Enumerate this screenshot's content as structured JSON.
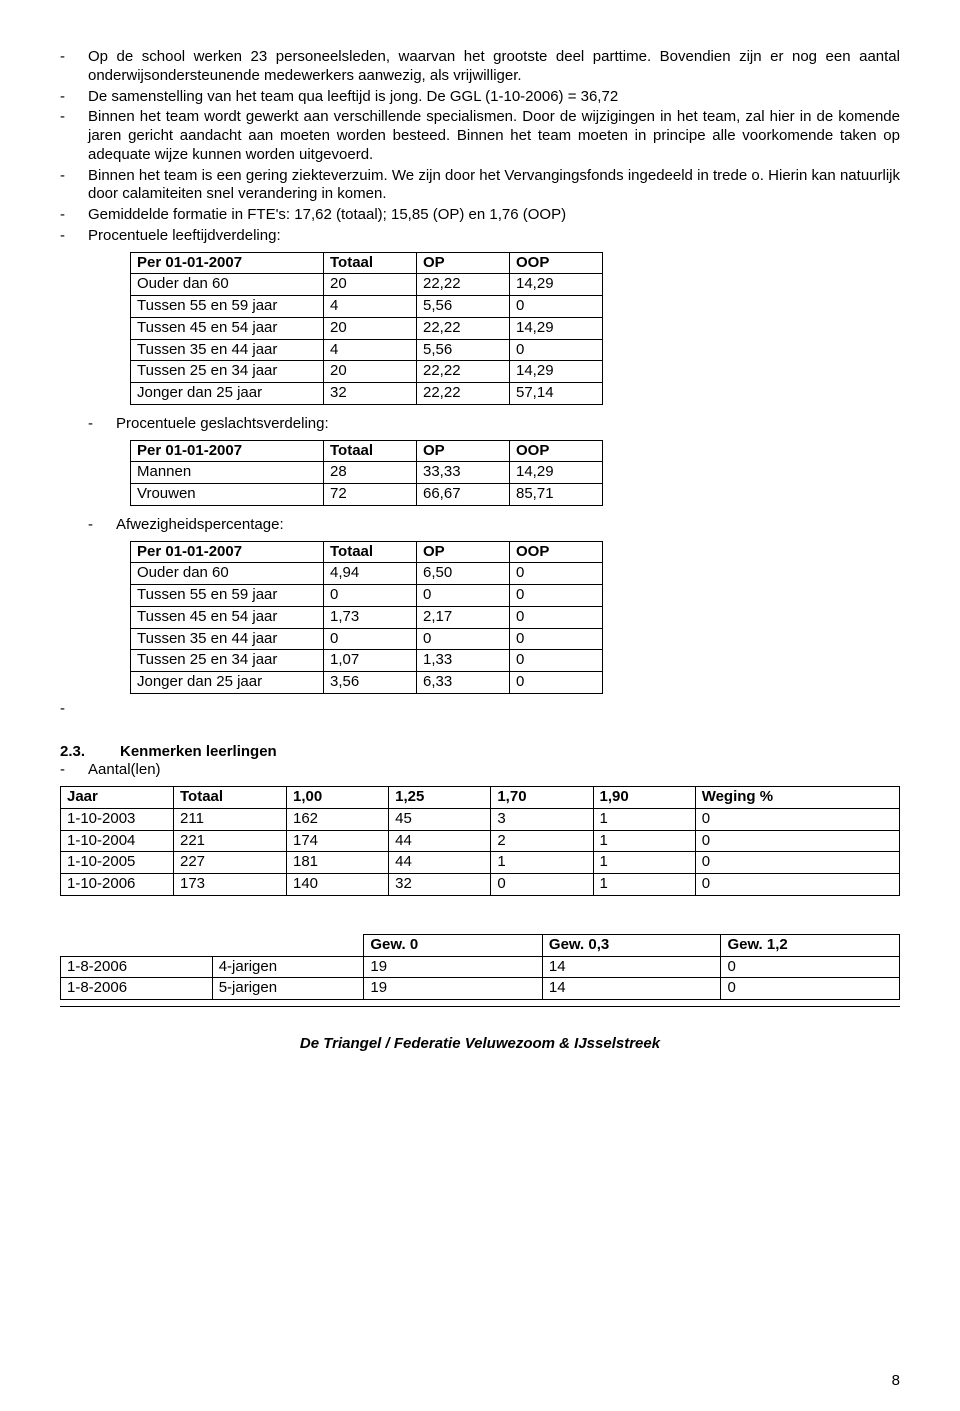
{
  "bullets": {
    "b1": "Op de school werken 23 personeelsleden, waarvan het grootste deel parttime. Bovendien zijn er nog een aantal onderwijsondersteunende medewerkers aanwezig, als vrijwilliger.",
    "b2": "De samenstelling van het team qua leeftijd is jong. De GGL (1-10-2006) = 36,72",
    "b3": "Binnen het team wordt gewerkt aan verschillende specialismen. Door de wijzigingen in het team, zal hier in de komende jaren gericht aandacht aan moeten worden besteed. Binnen het team moeten in principe alle voorkomende taken op adequate wijze kunnen worden uitgevoerd.",
    "b4": "Binnen het team is een gering ziekteverzuim. We zijn door het Vervangingsfonds ingedeeld in trede o. Hierin kan natuurlijk door calamiteiten snel verandering in komen.",
    "b5": "Gemiddelde formatie in FTE's: 17,62 (totaal); 15,85 (OP) en 1,76 (OOP)",
    "b6": "Procentuele leeftijdverdeling:",
    "b7": "Procentuele geslachtsverdeling:",
    "b8": "Afwezigheidspercentage:",
    "b9": "Aantal(len)"
  },
  "table1": {
    "headers": [
      "Per 01-01-2007",
      "Totaal",
      "OP",
      "OOP"
    ],
    "rows": [
      [
        "Ouder dan 60",
        "20",
        "22,22",
        "14,29"
      ],
      [
        "Tussen 55 en 59 jaar",
        "4",
        "5,56",
        "0"
      ],
      [
        "Tussen 45 en 54 jaar",
        "20",
        "22,22",
        "14,29"
      ],
      [
        "Tussen 35 en 44 jaar",
        "4",
        "5,56",
        "0"
      ],
      [
        "Tussen 25 en 34 jaar",
        "20",
        "22,22",
        "14,29"
      ],
      [
        "Jonger dan 25 jaar",
        "32",
        "22,22",
        "57,14"
      ]
    ]
  },
  "table2": {
    "headers": [
      "Per 01-01-2007",
      "Totaal",
      "OP",
      "OOP"
    ],
    "rows": [
      [
        "Mannen",
        "28",
        "33,33",
        "14,29"
      ],
      [
        "Vrouwen",
        "72",
        "66,67",
        "85,71"
      ]
    ]
  },
  "table3": {
    "headers": [
      "Per 01-01-2007",
      "Totaal",
      "OP",
      "OOP"
    ],
    "rows": [
      [
        "Ouder dan 60",
        "4,94",
        "6,50",
        "0"
      ],
      [
        "Tussen 55 en 59 jaar",
        "0",
        "0",
        "0"
      ],
      [
        "Tussen 45 en 54 jaar",
        "1,73",
        "2,17",
        "0"
      ],
      [
        "Tussen 35 en 44 jaar",
        "0",
        "0",
        "0"
      ],
      [
        "Tussen 25 en 34 jaar",
        "1,07",
        "1,33",
        "0"
      ],
      [
        "Jonger dan 25 jaar",
        "3,56",
        "6,33",
        "0"
      ]
    ]
  },
  "section": {
    "num": "2.3.",
    "title": "Kenmerken leerlingen"
  },
  "table4": {
    "headers": [
      "Jaar",
      "Totaal",
      "1,00",
      "1,25",
      "1,70",
      "1,90",
      "Weging %"
    ],
    "rows": [
      [
        "1-10-2003",
        "211",
        "162",
        "45",
        "3",
        "1",
        "0"
      ],
      [
        "1-10-2004",
        "221",
        "174",
        "44",
        "2",
        "1",
        "0"
      ],
      [
        "1-10-2005",
        "227",
        "181",
        "44",
        "1",
        "1",
        "0"
      ],
      [
        "1-10-2006",
        "173",
        "140",
        "32",
        "0",
        "1",
        "0"
      ]
    ]
  },
  "table5": {
    "headers": [
      "Gew. 0",
      "Gew. 0,3",
      "Gew. 1,2"
    ],
    "rows": [
      [
        "1-8-2006",
        "4-jarigen",
        "19",
        "14",
        "0"
      ],
      [
        "1-8-2006",
        "5-jarigen",
        "19",
        "14",
        "0"
      ]
    ]
  },
  "footer": "De Triangel / Federatie Veluwezoom & IJsselstreek",
  "pagenum": "8"
}
